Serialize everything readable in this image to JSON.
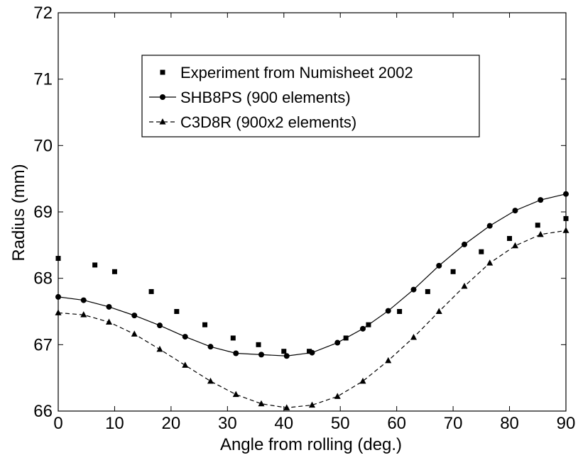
{
  "chart_data": {
    "type": "line",
    "title": "",
    "xlabel": "Angle from rolling (deg.)",
    "ylabel": "Radius (mm)",
    "xlim": [
      0,
      90
    ],
    "ylim": [
      66,
      72
    ],
    "xticks": [
      "0",
      "10",
      "20",
      "30",
      "40",
      "50",
      "60",
      "70",
      "80",
      "90"
    ],
    "yticks": [
      "66",
      "67",
      "68",
      "69",
      "70",
      "71",
      "72"
    ],
    "grid": false,
    "legend_position": "top-center",
    "series": [
      {
        "name": "Experiment from Numisheet 2002",
        "style": "markers",
        "marker": "square",
        "x": [
          0,
          6.5,
          10,
          16.5,
          21,
          26,
          31,
          35.5,
          40,
          44.5,
          51,
          55,
          60.5,
          65.5,
          70,
          75,
          80,
          85,
          90
        ],
        "y": [
          68.3,
          68.2,
          68.1,
          67.8,
          67.5,
          67.3,
          67.1,
          67.0,
          66.9,
          66.9,
          67.1,
          67.3,
          67.5,
          67.8,
          68.1,
          68.4,
          68.6,
          68.8,
          68.9
        ]
      },
      {
        "name": "SHB8PS (900 elements)",
        "style": "solid",
        "marker": "circle",
        "x": [
          0,
          4.5,
          9,
          13.5,
          18,
          22.5,
          27,
          31.5,
          36,
          40.5,
          45,
          49.5,
          54,
          58.5,
          63,
          67.5,
          72,
          76.5,
          81,
          85.5,
          90
        ],
        "y": [
          67.72,
          67.67,
          67.57,
          67.44,
          67.29,
          67.12,
          66.97,
          66.87,
          66.85,
          66.83,
          66.88,
          67.03,
          67.24,
          67.51,
          67.83,
          68.19,
          68.51,
          68.79,
          69.02,
          69.18,
          69.27
        ]
      },
      {
        "name": "C3D8R (900x2 elements)",
        "style": "dashed",
        "marker": "triangle",
        "x": [
          0,
          4.5,
          9,
          13.5,
          18,
          22.5,
          27,
          31.5,
          36,
          40.5,
          45,
          49.5,
          54,
          58.5,
          63,
          67.5,
          72,
          76.5,
          81,
          85.5,
          90
        ],
        "y": [
          67.48,
          67.45,
          67.34,
          67.16,
          66.93,
          66.69,
          66.45,
          66.25,
          66.11,
          66.05,
          66.09,
          66.22,
          66.45,
          66.76,
          67.11,
          67.5,
          67.88,
          68.23,
          68.49,
          68.66,
          68.72
        ]
      }
    ]
  }
}
